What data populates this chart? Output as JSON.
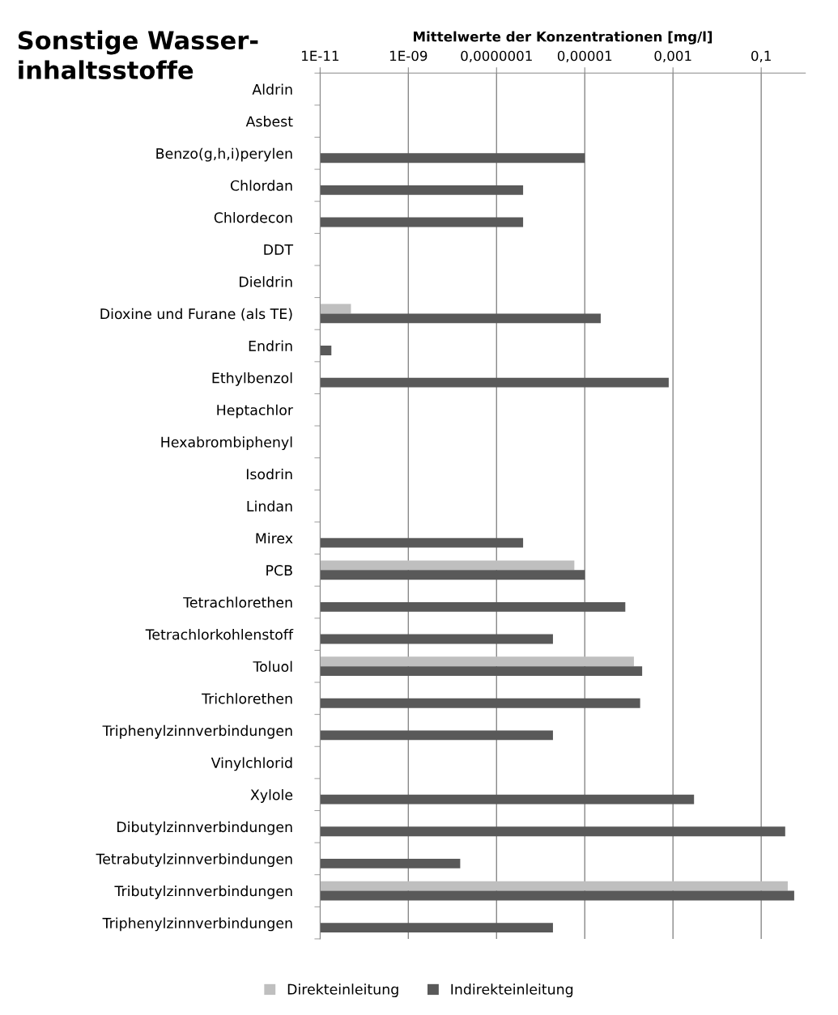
{
  "chart_data": {
    "type": "bar",
    "orientation": "horizontal",
    "title": "Sonstige Wasser-\ninhaltsstoffe",
    "xlabel": "Mittelwerte der Konzentrationen [mg/l]",
    "log": "x",
    "grid": "x",
    "legend": "bottom",
    "categories": [
      "Aldrin",
      "Asbest",
      "Benzo(g,h,i)perylen",
      "Chlordan",
      "Chlordecon",
      "DDT",
      "Dieldrin",
      "Dioxine und Furane (als TE)",
      "Endrin",
      "Ethylbenzol",
      "Heptachlor",
      "Hexabrombiphenyl",
      "Isodrin",
      "Lindan",
      "Mirex",
      "PCB",
      "Tetrachlorethen",
      "Tetrachlorkohlenstoff",
      "Toluol",
      "Trichlorethen",
      "Triphenylzinnverbindungen",
      "Vinylchlorid",
      "Xylole",
      "Dibutylzinnverbindungen",
      "Tetrabutylzinnverbindungen",
      "Tributylzinnverbindungen",
      "Triphenylzinnverbindungen"
    ],
    "xlim": [
      1e-11,
      1
    ],
    "xticks": [
      {
        "value": 1e-11,
        "label": "1E-11"
      },
      {
        "value": 1e-09,
        "label": "1E-09"
      },
      {
        "value": 1e-07,
        "label": "0,0000001"
      },
      {
        "value": 1e-05,
        "label": "0,00001"
      },
      {
        "value": 0.001,
        "label": "0,001"
      },
      {
        "value": 0.1,
        "label": "0,1"
      }
    ],
    "series": [
      {
        "name": "Direkteinleitung",
        "color": "#bfbfbf",
        "values": [
          null,
          null,
          null,
          null,
          null,
          null,
          null,
          5e-11,
          null,
          null,
          null,
          null,
          null,
          null,
          null,
          5.8e-06,
          null,
          null,
          0.00013,
          null,
          null,
          null,
          null,
          null,
          null,
          0.4,
          null
        ]
      },
      {
        "name": "Indirekteinleitung",
        "color": "#595959",
        "values": [
          null,
          null,
          1e-05,
          4e-07,
          4e-07,
          null,
          null,
          2.3e-05,
          1.8e-11,
          0.0008,
          null,
          null,
          null,
          null,
          4e-07,
          1e-05,
          8.3e-05,
          1.9e-06,
          0.0002,
          0.00018,
          1.9e-06,
          null,
          0.003,
          0.35,
          1.5e-08,
          0.56,
          1.9e-06
        ]
      }
    ]
  }
}
